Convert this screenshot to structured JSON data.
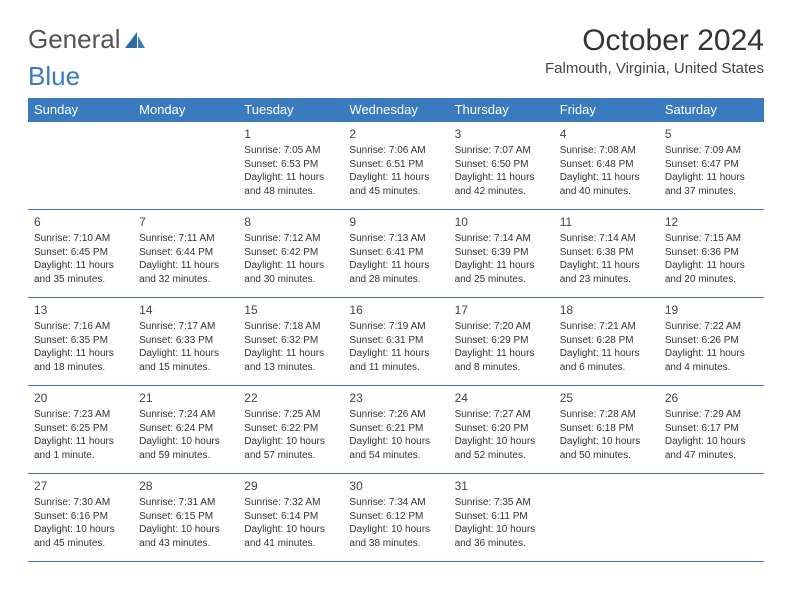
{
  "logo": {
    "part1": "General",
    "part2": "Blue"
  },
  "title": "October 2024",
  "location": "Falmouth, Virginia, United States",
  "colors": {
    "header_bg": "#3a7bbf",
    "header_text": "#ffffff",
    "border": "#3a7bbf",
    "body_text": "#333333"
  },
  "dayHeaders": [
    "Sunday",
    "Monday",
    "Tuesday",
    "Wednesday",
    "Thursday",
    "Friday",
    "Saturday"
  ],
  "weeks": [
    [
      null,
      null,
      {
        "n": "1",
        "sr": "Sunrise: 7:05 AM",
        "ss": "Sunset: 6:53 PM",
        "dl": "Daylight: 11 hours and 48 minutes."
      },
      {
        "n": "2",
        "sr": "Sunrise: 7:06 AM",
        "ss": "Sunset: 6:51 PM",
        "dl": "Daylight: 11 hours and 45 minutes."
      },
      {
        "n": "3",
        "sr": "Sunrise: 7:07 AM",
        "ss": "Sunset: 6:50 PM",
        "dl": "Daylight: 11 hours and 42 minutes."
      },
      {
        "n": "4",
        "sr": "Sunrise: 7:08 AM",
        "ss": "Sunset: 6:48 PM",
        "dl": "Daylight: 11 hours and 40 minutes."
      },
      {
        "n": "5",
        "sr": "Sunrise: 7:09 AM",
        "ss": "Sunset: 6:47 PM",
        "dl": "Daylight: 11 hours and 37 minutes."
      }
    ],
    [
      {
        "n": "6",
        "sr": "Sunrise: 7:10 AM",
        "ss": "Sunset: 6:45 PM",
        "dl": "Daylight: 11 hours and 35 minutes."
      },
      {
        "n": "7",
        "sr": "Sunrise: 7:11 AM",
        "ss": "Sunset: 6:44 PM",
        "dl": "Daylight: 11 hours and 32 minutes."
      },
      {
        "n": "8",
        "sr": "Sunrise: 7:12 AM",
        "ss": "Sunset: 6:42 PM",
        "dl": "Daylight: 11 hours and 30 minutes."
      },
      {
        "n": "9",
        "sr": "Sunrise: 7:13 AM",
        "ss": "Sunset: 6:41 PM",
        "dl": "Daylight: 11 hours and 28 minutes."
      },
      {
        "n": "10",
        "sr": "Sunrise: 7:14 AM",
        "ss": "Sunset: 6:39 PM",
        "dl": "Daylight: 11 hours and 25 minutes."
      },
      {
        "n": "11",
        "sr": "Sunrise: 7:14 AM",
        "ss": "Sunset: 6:38 PM",
        "dl": "Daylight: 11 hours and 23 minutes."
      },
      {
        "n": "12",
        "sr": "Sunrise: 7:15 AM",
        "ss": "Sunset: 6:36 PM",
        "dl": "Daylight: 11 hours and 20 minutes."
      }
    ],
    [
      {
        "n": "13",
        "sr": "Sunrise: 7:16 AM",
        "ss": "Sunset: 6:35 PM",
        "dl": "Daylight: 11 hours and 18 minutes."
      },
      {
        "n": "14",
        "sr": "Sunrise: 7:17 AM",
        "ss": "Sunset: 6:33 PM",
        "dl": "Daylight: 11 hours and 15 minutes."
      },
      {
        "n": "15",
        "sr": "Sunrise: 7:18 AM",
        "ss": "Sunset: 6:32 PM",
        "dl": "Daylight: 11 hours and 13 minutes."
      },
      {
        "n": "16",
        "sr": "Sunrise: 7:19 AM",
        "ss": "Sunset: 6:31 PM",
        "dl": "Daylight: 11 hours and 11 minutes."
      },
      {
        "n": "17",
        "sr": "Sunrise: 7:20 AM",
        "ss": "Sunset: 6:29 PM",
        "dl": "Daylight: 11 hours and 8 minutes."
      },
      {
        "n": "18",
        "sr": "Sunrise: 7:21 AM",
        "ss": "Sunset: 6:28 PM",
        "dl": "Daylight: 11 hours and 6 minutes."
      },
      {
        "n": "19",
        "sr": "Sunrise: 7:22 AM",
        "ss": "Sunset: 6:26 PM",
        "dl": "Daylight: 11 hours and 4 minutes."
      }
    ],
    [
      {
        "n": "20",
        "sr": "Sunrise: 7:23 AM",
        "ss": "Sunset: 6:25 PM",
        "dl": "Daylight: 11 hours and 1 minute."
      },
      {
        "n": "21",
        "sr": "Sunrise: 7:24 AM",
        "ss": "Sunset: 6:24 PM",
        "dl": "Daylight: 10 hours and 59 minutes."
      },
      {
        "n": "22",
        "sr": "Sunrise: 7:25 AM",
        "ss": "Sunset: 6:22 PM",
        "dl": "Daylight: 10 hours and 57 minutes."
      },
      {
        "n": "23",
        "sr": "Sunrise: 7:26 AM",
        "ss": "Sunset: 6:21 PM",
        "dl": "Daylight: 10 hours and 54 minutes."
      },
      {
        "n": "24",
        "sr": "Sunrise: 7:27 AM",
        "ss": "Sunset: 6:20 PM",
        "dl": "Daylight: 10 hours and 52 minutes."
      },
      {
        "n": "25",
        "sr": "Sunrise: 7:28 AM",
        "ss": "Sunset: 6:18 PM",
        "dl": "Daylight: 10 hours and 50 minutes."
      },
      {
        "n": "26",
        "sr": "Sunrise: 7:29 AM",
        "ss": "Sunset: 6:17 PM",
        "dl": "Daylight: 10 hours and 47 minutes."
      }
    ],
    [
      {
        "n": "27",
        "sr": "Sunrise: 7:30 AM",
        "ss": "Sunset: 6:16 PM",
        "dl": "Daylight: 10 hours and 45 minutes."
      },
      {
        "n": "28",
        "sr": "Sunrise: 7:31 AM",
        "ss": "Sunset: 6:15 PM",
        "dl": "Daylight: 10 hours and 43 minutes."
      },
      {
        "n": "29",
        "sr": "Sunrise: 7:32 AM",
        "ss": "Sunset: 6:14 PM",
        "dl": "Daylight: 10 hours and 41 minutes."
      },
      {
        "n": "30",
        "sr": "Sunrise: 7:34 AM",
        "ss": "Sunset: 6:12 PM",
        "dl": "Daylight: 10 hours and 38 minutes."
      },
      {
        "n": "31",
        "sr": "Sunrise: 7:35 AM",
        "ss": "Sunset: 6:11 PM",
        "dl": "Daylight: 10 hours and 36 minutes."
      },
      null,
      null
    ]
  ]
}
